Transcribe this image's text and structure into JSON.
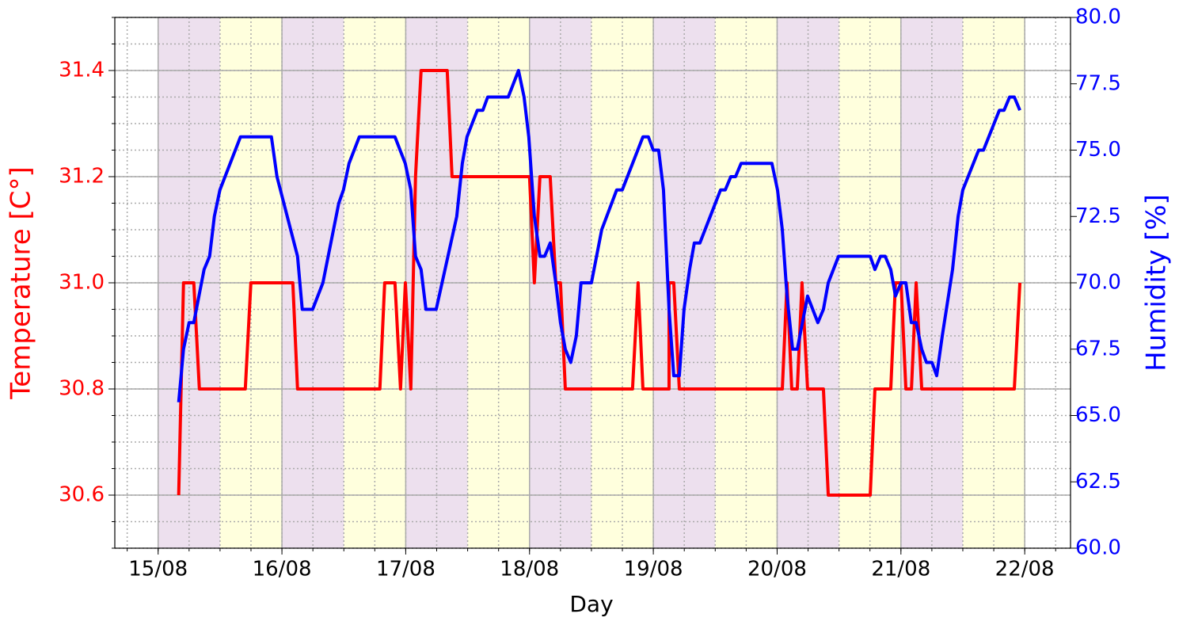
{
  "chart_data": {
    "type": "line",
    "x_label": "Day",
    "y_label": "Temperature [C°]",
    "y2_label": "Humidity [%]",
    "xlim": [
      14.65,
      22.37
    ],
    "xticks": [
      {
        "value": 15,
        "label": "15/08"
      },
      {
        "value": 16,
        "label": "16/08"
      },
      {
        "value": 17,
        "label": "17/08"
      },
      {
        "value": 18,
        "label": "18/08"
      },
      {
        "value": 19,
        "label": "19/08"
      },
      {
        "value": 20,
        "label": "20/08"
      },
      {
        "value": 21,
        "label": "21/08"
      },
      {
        "value": 22,
        "label": "22/08"
      }
    ],
    "ylim": [
      30.5,
      31.5
    ],
    "yticks": [
      30.6,
      30.8,
      {
        "value": 31,
        "label": "31.0"
      },
      31.2,
      31.4
    ],
    "y2lim": [
      60,
      80
    ],
    "y2ticks": [
      {
        "value": 60,
        "label": "60.0"
      },
      {
        "value": 62.5,
        "label": "62.5"
      },
      {
        "value": 65,
        "label": "65.0"
      },
      {
        "value": 67.5,
        "label": "67.5"
      },
      {
        "value": 70,
        "label": "70.0"
      },
      {
        "value": 72.5,
        "label": "72.5"
      },
      {
        "value": 75,
        "label": "75.0"
      },
      {
        "value": 77.5,
        "label": "77.5"
      },
      {
        "value": 80,
        "label": "80.0"
      }
    ],
    "y_color": "#ff0000",
    "y2_color": "#0000ff",
    "grid": true,
    "band_colors": [
      "#ede0ee",
      "#ffffdd"
    ],
    "series": [
      {
        "color": "#ff0000",
        "x": [
          15.166,
          15.205,
          15.288,
          15.333,
          15.704,
          15.749,
          16.088,
          16.126,
          16.791,
          16.83,
          16.913,
          16.958,
          16.997,
          17.041,
          17.079,
          17.124,
          17.335,
          17.374,
          18.0,
          18.039,
          18.084,
          18.167,
          18.212,
          18.25,
          18.289,
          18.832,
          18.877,
          18.916,
          19.127,
          19.127,
          19.165,
          19.21,
          20.042,
          20.08,
          20.118,
          20.163,
          20.201,
          20.246,
          20.374,
          20.413,
          20.752,
          20.79,
          20.918,
          20.956,
          21.001,
          21.04,
          21.085,
          21.123,
          21.168,
          21.916,
          21.961
        ],
        "values": [
          30.6,
          31.0,
          31.0,
          30.8,
          30.8,
          31.0,
          31.0,
          30.8,
          30.8,
          31.0,
          31.0,
          30.8,
          31.0,
          30.8,
          31.2,
          31.4,
          31.4,
          31.2,
          31.2,
          31.0,
          31.2,
          31.2,
          31.0,
          31.0,
          30.8,
          30.8,
          31.0,
          30.8,
          30.8,
          31.0,
          31.0,
          30.8,
          30.8,
          31.0,
          30.8,
          30.8,
          31.0,
          30.8,
          30.8,
          30.6,
          30.6,
          30.8,
          30.8,
          31.0,
          31.0,
          30.8,
          30.8,
          31.0,
          30.8,
          30.8,
          31.0
        ]
      },
      {
        "color": "#0000ff",
        "axis": "y2",
        "x": [
          15.166,
          15.205,
          15.25,
          15.288,
          15.371,
          15.416,
          15.454,
          15.499,
          15.665,
          15.915,
          15.96,
          16.126,
          16.164,
          16.248,
          16.331,
          16.459,
          16.497,
          16.542,
          16.625,
          16.913,
          16.996,
          17.041,
          17.079,
          17.124,
          17.163,
          17.246,
          17.412,
          17.457,
          17.495,
          17.578,
          17.623,
          17.662,
          17.828,
          17.911,
          17.956,
          17.994,
          18.039,
          18.084,
          18.122,
          18.167,
          18.212,
          18.25,
          18.289,
          18.333,
          18.378,
          18.416,
          18.5,
          18.583,
          18.704,
          18.749,
          18.916,
          18.96,
          18.999,
          19.043,
          19.082,
          19.127,
          19.165,
          19.21,
          19.248,
          19.293,
          19.331,
          19.376,
          19.543,
          19.581,
          19.626,
          19.664,
          19.709,
          19.958,
          20.003,
          20.042,
          20.08,
          20.125,
          20.163,
          20.246,
          20.329,
          20.374,
          20.413,
          20.496,
          20.752,
          20.79,
          20.835,
          20.873,
          20.918,
          20.956,
          21.001,
          21.04,
          21.084,
          21.123,
          21.168,
          21.206,
          21.251,
          21.289,
          21.334,
          21.417,
          21.462,
          21.5,
          21.628,
          21.667,
          21.795,
          21.833,
          21.878,
          21.916,
          21.961
        ],
        "values": [
          65.5,
          67.5,
          68.5,
          68.5,
          70.5,
          71,
          72.5,
          73.5,
          75.5,
          75.5,
          74,
          71,
          69,
          69,
          70,
          73,
          73.5,
          74.5,
          75.5,
          75.5,
          74.5,
          73.5,
          71,
          70.5,
          69,
          69,
          72.5,
          74.5,
          75.5,
          76.5,
          76.5,
          77,
          77,
          78,
          77,
          75.5,
          72.5,
          71,
          71,
          71.5,
          70,
          68.5,
          67.5,
          67,
          68,
          70,
          70,
          72,
          73.5,
          73.5,
          75.5,
          75.5,
          75,
          75,
          73.5,
          69,
          66.5,
          66.5,
          69,
          70.5,
          71.5,
          71.5,
          73.5,
          73.5,
          74,
          74,
          74.5,
          74.5,
          73.5,
          72,
          69.5,
          67.5,
          67.5,
          69.5,
          68.5,
          69,
          70,
          71,
          71,
          70.5,
          71,
          71,
          70.5,
          69.5,
          70,
          70,
          68.5,
          68.5,
          67.5,
          67,
          67,
          66.5,
          68,
          70.5,
          72.5,
          73.5,
          75,
          75,
          76.5,
          76.5,
          77,
          77,
          76.5
        ]
      }
    ]
  }
}
